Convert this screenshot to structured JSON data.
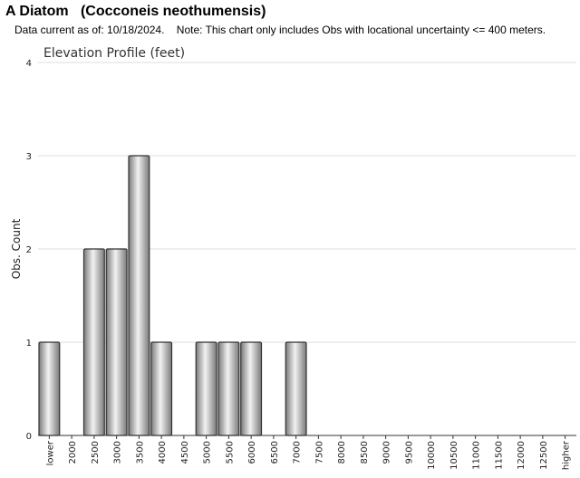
{
  "header": {
    "title": "A Diatom   (Cocconeis neothumensis)",
    "note": "Data current as of: 10/18/2024.    Note: This chart only includes Obs with locational uncertainty <= 400 meters."
  },
  "chart_data": {
    "type": "bar",
    "title": "Elevation Profile (feet)",
    "xlabel": "",
    "ylabel": "Obs. Count",
    "ylim": [
      0,
      4
    ],
    "yticks": [
      0,
      1,
      2,
      3,
      4
    ],
    "grid": true,
    "categories": [
      "lower",
      "2000",
      "2500",
      "3000",
      "3500",
      "4000",
      "4500",
      "5000",
      "5500",
      "6000",
      "6500",
      "7000",
      "7500",
      "8000",
      "8500",
      "9000",
      "9500",
      "10000",
      "10500",
      "11000",
      "11500",
      "12000",
      "12500",
      "higher"
    ],
    "values": [
      1,
      0,
      2,
      2,
      3,
      1,
      0,
      1,
      1,
      1,
      0,
      1,
      0,
      0,
      0,
      0,
      0,
      0,
      0,
      0,
      0,
      0,
      0,
      0
    ],
    "colors": {
      "bar_light": "#f2f2f2",
      "bar_dark": "#7a7a7a",
      "bar_stroke": "#333333",
      "grid": "#dddddd",
      "axis": "#333333"
    }
  }
}
